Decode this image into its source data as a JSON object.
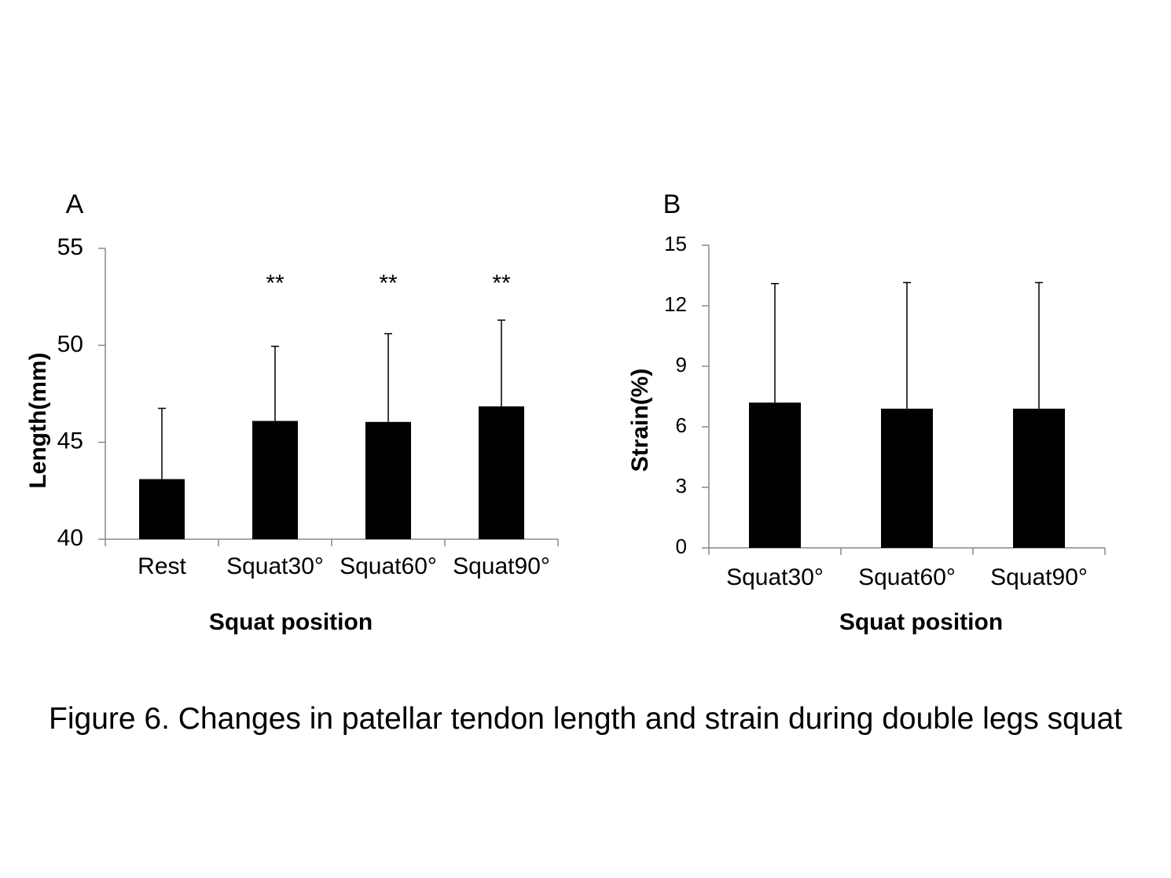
{
  "figure": {
    "caption": "Figure 6. Changes in patellar tendon length and strain during double legs squat"
  },
  "chart_data": [
    {
      "panel": "A",
      "type": "bar",
      "categories": [
        "Rest",
        "Squat30°",
        "Squat60°",
        "Squat90°"
      ],
      "values": [
        43.1,
        46.1,
        46.05,
        46.85
      ],
      "error_upper": [
        46.75,
        49.95,
        50.6,
        51.3
      ],
      "significance": [
        "",
        "**",
        "**",
        "**"
      ],
      "xlabel": "Squat position",
      "ylabel": "Length(mm)",
      "ylim": [
        40,
        55
      ],
      "yticks": [
        40,
        45,
        50,
        55
      ],
      "bar_color": "#000000",
      "grid": false
    },
    {
      "panel": "B",
      "type": "bar",
      "categories": [
        "Squat30°",
        "Squat60°",
        "Squat90°"
      ],
      "values": [
        7.2,
        6.9,
        6.9
      ],
      "error_upper": [
        13.1,
        13.15,
        13.15
      ],
      "significance": [
        "",
        "",
        ""
      ],
      "xlabel": "Squat position",
      "ylabel": "Strain(%)",
      "ylim": [
        0,
        15
      ],
      "yticks": [
        0,
        3,
        6,
        9,
        12,
        15
      ],
      "bar_color": "#000000",
      "grid": false
    }
  ]
}
